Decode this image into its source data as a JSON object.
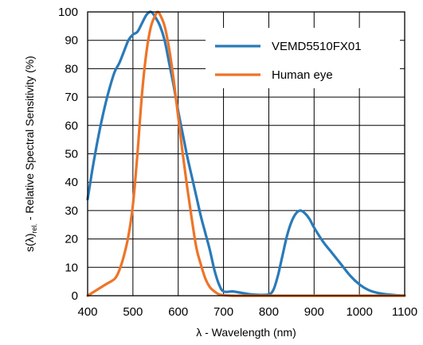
{
  "chart_data": {
    "type": "line",
    "xlabel": "λ - Wavelength (nm)",
    "ylabel_prefix": "s(λ)",
    "ylabel_sub": "rel.",
    "ylabel_rest": " - Relative Spectral Sensitivity (%)",
    "xlim": [
      400,
      1100
    ],
    "ylim": [
      0,
      100
    ],
    "xticks": [
      "400",
      "500",
      "600",
      "700",
      "800",
      "900",
      "1000",
      "1100"
    ],
    "yticks": [
      "0",
      "10",
      "20",
      "30",
      "40",
      "50",
      "60",
      "70",
      "80",
      "90",
      "100"
    ],
    "grid": true,
    "legend_position": "top-right",
    "series": [
      {
        "name": "VEMD5510FX01",
        "color": "#2a7ab8",
        "x": [
          400,
          410,
          420,
          430,
          440,
          450,
          460,
          470,
          480,
          490,
          500,
          510,
          520,
          530,
          540,
          550,
          560,
          570,
          580,
          590,
          600,
          610,
          620,
          630,
          640,
          650,
          660,
          670,
          680,
          690,
          700,
          720,
          740,
          760,
          780,
          800,
          810,
          820,
          830,
          840,
          850,
          860,
          870,
          880,
          890,
          900,
          920,
          940,
          960,
          980,
          1000,
          1020,
          1040,
          1060,
          1080,
          1100
        ],
        "y": [
          34,
          44,
          53,
          61,
          68,
          74,
          79,
          82,
          86,
          90,
          92,
          93,
          96,
          99,
          100,
          98,
          95,
          90,
          82,
          74,
          65,
          57,
          49,
          42,
          35,
          28,
          22,
          16,
          9,
          4,
          1.5,
          1.5,
          1,
          0.5,
          0.3,
          0.5,
          2,
          7,
          14,
          21,
          26,
          29,
          30,
          29,
          27,
          24,
          19,
          15,
          11,
          7,
          4,
          2,
          1,
          0.5,
          0.2,
          0
        ]
      },
      {
        "name": "Human eye",
        "color": "#ee7428",
        "x": [
          400,
          420,
          440,
          460,
          470,
          480,
          490,
          500,
          510,
          520,
          530,
          540,
          550,
          555,
          560,
          570,
          580,
          590,
          600,
          610,
          620,
          630,
          640,
          650,
          660,
          670,
          680,
          690,
          700,
          720,
          740,
          760,
          800,
          900,
          1000,
          1100
        ],
        "y": [
          0,
          2,
          4,
          6,
          9,
          14,
          21,
          32,
          50,
          71,
          86,
          95,
          99,
          100,
          99,
          95,
          87,
          76,
          63,
          50,
          38,
          27,
          17,
          11,
          6,
          3,
          1.5,
          0.5,
          0.2,
          0,
          0,
          0,
          0,
          0,
          0,
          0
        ]
      }
    ]
  }
}
